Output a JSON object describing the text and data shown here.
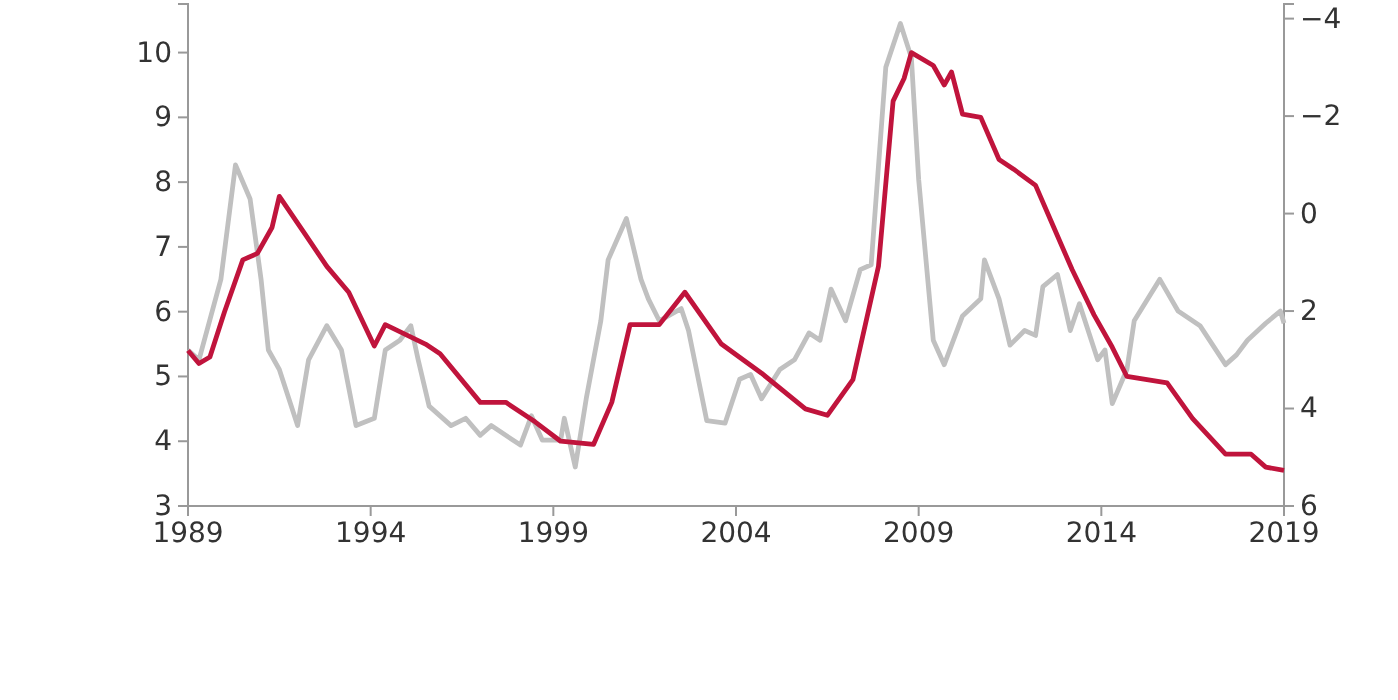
{
  "chart_data": {
    "type": "line",
    "xlim": [
      1989,
      2019
    ],
    "xticks": [
      1989,
      1994,
      1999,
      2004,
      2009,
      2014,
      2019
    ],
    "ylim": [
      3,
      10.75
    ],
    "yticks": [
      3,
      4,
      5,
      6,
      7,
      8,
      9,
      10
    ],
    "y2lim": [
      6,
      -4.3
    ],
    "y2ticks": [
      -4,
      -2,
      0,
      2,
      4,
      6
    ],
    "grid": false,
    "line_style": "solid",
    "marker": "none",
    "series": [
      {
        "color": "#c0143c",
        "x": [
          1989.0,
          1989.3,
          1989.6,
          1990.0,
          1990.5,
          1990.9,
          1991.3,
          1991.5,
          1992.2,
          1992.8,
          1993.4,
          1994.1,
          1994.4,
          1995.5,
          1995.9,
          1997.0,
          1997.7,
          1998.5,
          1999.2,
          2000.1,
          2000.6,
          2001.1,
          2001.9,
          2002.6,
          2003.6,
          2004.7,
          2005.9,
          2006.5,
          2007.2,
          2007.9,
          2008.3,
          2008.6,
          2008.8,
          2009.4,
          2009.7,
          2009.9,
          2010.2,
          2010.7,
          2011.2,
          2011.6,
          2012.2,
          2012.7,
          2013.2,
          2013.8,
          2014.3,
          2014.7,
          2015.8,
          2016.5,
          2017.4,
          2018.1,
          2018.5,
          2019.0
        ],
        "values": [
          5.4,
          5.2,
          5.3,
          6.0,
          6.8,
          6.9,
          7.3,
          7.78,
          7.2,
          6.7,
          6.3,
          5.47,
          5.8,
          5.5,
          5.35,
          4.6,
          4.6,
          4.3,
          4.0,
          3.95,
          4.6,
          5.8,
          5.8,
          6.3,
          5.5,
          5.05,
          4.5,
          4.4,
          4.95,
          6.7,
          9.25,
          9.6,
          10.0,
          9.8,
          9.5,
          9.7,
          9.05,
          9.0,
          8.35,
          8.2,
          7.95,
          7.3,
          6.65,
          5.95,
          5.45,
          5.0,
          4.9,
          4.35,
          3.8,
          3.8,
          3.6,
          3.55
        ]
      },
      {
        "color": "#c0c0c0",
        "axis": "y2",
        "x": [
          1989.0,
          1989.3,
          1989.9,
          1990.3,
          1990.7,
          1991.0,
          1991.2,
          1991.5,
          1992.0,
          1992.3,
          1992.8,
          1993.2,
          1993.6,
          1994.1,
          1994.4,
          1994.8,
          1995.1,
          1995.3,
          1995.6,
          1996.2,
          1996.6,
          1997.0,
          1997.3,
          1998.1,
          1998.4,
          1998.7,
          1999.2,
          1999.3,
          1999.6,
          1999.9,
          2000.3,
          2000.5,
          2001.0,
          2001.4,
          2001.6,
          2001.9,
          2002.5,
          2002.7,
          2003.2,
          2003.7,
          2004.1,
          2004.4,
          2004.7,
          2005.2,
          2005.6,
          2006.0,
          2006.3,
          2006.6,
          2007.0,
          2007.4,
          2007.7,
          2008.1,
          2008.5,
          2008.8,
          2009.0,
          2009.4,
          2009.7,
          2010.2,
          2010.7,
          2010.8,
          2011.2,
          2011.5,
          2011.9,
          2012.2,
          2012.4,
          2012.8,
          2013.0,
          2013.15,
          2013.4,
          2013.9,
          2014.1,
          2014.3,
          2014.7,
          2014.9,
          2015.6,
          2016.1,
          2016.7,
          2017.4,
          2017.7,
          2018.0,
          2018.5,
          2018.9,
          2019.0
        ],
        "values": [
          2.8,
          3.0,
          1.35,
          -1.0,
          -0.3,
          1.35,
          2.8,
          3.2,
          4.35,
          3.0,
          2.3,
          2.8,
          4.35,
          4.2,
          2.8,
          2.6,
          2.3,
          3.0,
          3.95,
          4.35,
          4.2,
          4.55,
          4.35,
          4.75,
          4.15,
          4.65,
          4.65,
          4.2,
          5.2,
          3.8,
          2.2,
          0.95,
          0.1,
          1.35,
          1.75,
          2.2,
          1.95,
          2.4,
          4.25,
          4.3,
          3.4,
          3.3,
          3.8,
          3.2,
          3.0,
          2.45,
          2.6,
          1.55,
          2.2,
          1.15,
          1.05,
          -3.0,
          -3.9,
          -3.2,
          -0.7,
          2.6,
          3.1,
          2.1,
          1.75,
          0.95,
          1.75,
          2.7,
          2.4,
          2.5,
          1.5,
          1.25,
          1.9,
          2.4,
          1.85,
          3.0,
          2.8,
          3.9,
          3.2,
          2.2,
          1.35,
          2.0,
          2.3,
          3.1,
          2.9,
          2.6,
          2.25,
          2.0,
          2.25
        ]
      }
    ]
  }
}
